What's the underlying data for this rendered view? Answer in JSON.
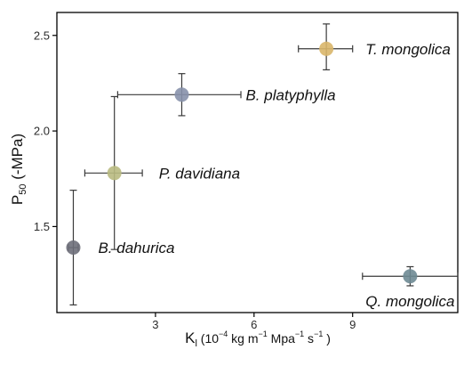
{
  "chart_data": {
    "type": "scatter",
    "title": "",
    "xlabel": {
      "base": "K",
      "sub": "l",
      "rest": " (10",
      "exp1": "−4",
      "mid1": " kg m",
      "exp2": "−1",
      "mid2": " Mpa",
      "exp3": "−1",
      "mid3": " s",
      "exp4": "−1",
      "end": " )"
    },
    "ylabel": {
      "base": "P",
      "sub": "50",
      "rest": " (-MPa)"
    },
    "xlim": [
      0,
      12.2
    ],
    "ylim": [
      1.05,
      2.62
    ],
    "x_ticks": [
      3,
      6,
      9
    ],
    "x_tick_labels": [
      "3",
      "6",
      "9"
    ],
    "y_ticks": [
      1.5,
      2.0,
      2.5
    ],
    "y_tick_labels": [
      "1.5",
      "2.0",
      "2.5"
    ],
    "grid": false,
    "legend": "none",
    "points": [
      {
        "label": "T. mongolica",
        "x": 8.2,
        "y": 2.43,
        "x_err": [
          0.85,
          0.8
        ],
        "y_err": [
          0.11,
          0.13
        ],
        "color": "#d9b66a"
      },
      {
        "label": "B. platyphylla",
        "x": 3.8,
        "y": 2.19,
        "x_err": [
          1.95,
          1.8
        ],
        "y_err": [
          0.11,
          0.11
        ],
        "color": "#8791ab"
      },
      {
        "label": "P. davidiana",
        "x": 1.75,
        "y": 1.78,
        "x_err": [
          0.9,
          0.85
        ],
        "y_err": [
          0.4,
          0.4
        ],
        "color": "#b9ba81"
      },
      {
        "label": "B. dahurica",
        "x": 0.5,
        "y": 1.39,
        "x_err": [
          0.15,
          0.15
        ],
        "y_err": [
          0.3,
          0.3
        ],
        "color": "#6e6f7a"
      },
      {
        "label": "Q. mongolica",
        "x": 10.75,
        "y": 1.24,
        "x_err": [
          1.45,
          1.45
        ],
        "y_err": [
          0.05,
          0.05
        ],
        "color": "#6e8a94"
      }
    ]
  }
}
